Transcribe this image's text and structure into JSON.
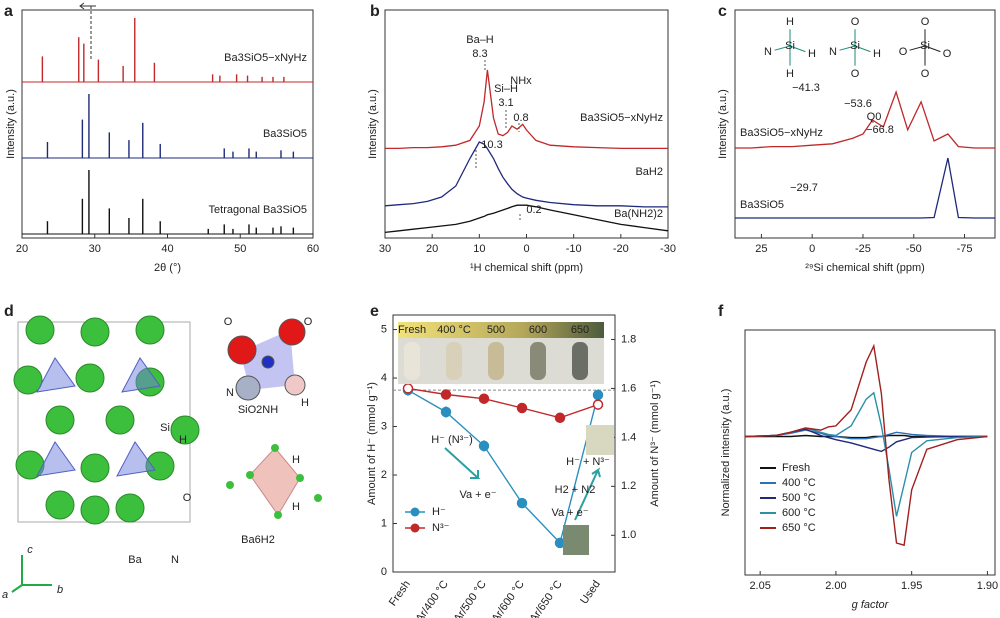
{
  "chart_data": [
    {
      "type": "xrd",
      "panel": "a",
      "xlim": [
        20,
        60
      ],
      "xticks": [
        20,
        30,
        40,
        50,
        60
      ],
      "xlabel": "2θ (°)",
      "ylabel": "Intensity (a.u.)",
      "series": [
        {
          "name": "Ba3SiO5−xNyHz",
          "color": "#c0282a",
          "x": [
            22.8,
            27.8,
            28.5,
            30.5,
            33.9,
            35.5,
            38.2,
            46.2,
            47.2,
            49.5,
            51,
            53,
            54.5,
            56
          ],
          "values": [
            40,
            70,
            60,
            35,
            25,
            100,
            30,
            12,
            10,
            12,
            10,
            8,
            8,
            8
          ]
        },
        {
          "name": "Ba3SiO5",
          "color": "#1f2a7a",
          "x": [
            23.5,
            28.3,
            29.2,
            32,
            34.7,
            36.6,
            39,
            47.8,
            49,
            51.2,
            52.2,
            55.6,
            57.3
          ],
          "values": [
            25,
            60,
            100,
            40,
            28,
            55,
            22,
            15,
            10,
            15,
            10,
            12,
            10
          ]
        },
        {
          "name": "Tetragonal Ba3SiO5",
          "color": "#111111",
          "x": [
            23.5,
            28.3,
            29.2,
            32,
            34.7,
            36.6,
            39,
            45.6,
            47.8,
            49,
            51.2,
            52.2,
            54.5,
            55.6,
            57.3
          ],
          "values": [
            20,
            55,
            100,
            40,
            25,
            55,
            20,
            8,
            15,
            8,
            15,
            10,
            10,
            12,
            10
          ]
        }
      ]
    },
    {
      "type": "stack",
      "panel": "b",
      "xlim": [
        30,
        -30
      ],
      "xticks": [
        30,
        20,
        10,
        0,
        -10,
        -20,
        -30
      ],
      "xlabel": "¹H chemical shift (ppm)",
      "ylabel": "Intensity (a.u.)",
      "x": [
        30,
        27,
        24,
        21,
        18,
        15,
        12,
        10,
        9,
        8.3,
        7,
        6,
        5,
        4,
        3.1,
        2,
        0.8,
        0,
        -2,
        -5,
        -10,
        -15,
        -20,
        -25,
        -30
      ],
      "series": [
        {
          "name": "Ba3SiO5−xNyHz",
          "color": "#c0282a",
          "values": [
            2,
            2,
            3,
            3,
            4,
            6,
            12,
            30,
            60,
            100,
            40,
            20,
            18,
            22,
            30,
            26,
            32,
            25,
            12,
            6,
            4,
            3,
            2,
            2,
            2
          ]
        },
        {
          "name": "BaH2",
          "color": "#1f2a7a",
          "values": [
            2,
            3,
            4,
            6,
            10,
            20,
            45,
            60,
            58,
            54,
            45,
            36,
            28,
            22,
            17,
            13,
            10,
            9,
            7,
            5,
            3,
            2,
            2,
            1,
            1
          ]
        },
        {
          "name": "Ba(NH2)2",
          "color": "#111111",
          "values": [
            1,
            2,
            3,
            4,
            5,
            6,
            8,
            10,
            11,
            12,
            13,
            14,
            15,
            16,
            17,
            18,
            18,
            18,
            17,
            15,
            12,
            9,
            6,
            4,
            2
          ]
        }
      ],
      "annotations": [
        "Ba–H",
        "8.3",
        "Si–H",
        "3.1",
        "NHx",
        "0.8",
        "10.3",
        "0.2"
      ]
    },
    {
      "type": "stack",
      "panel": "c",
      "xlim": [
        38,
        -90
      ],
      "xticks": [
        25,
        0,
        -25,
        -50,
        -75
      ],
      "xlabel": "²⁹Si chemical shift (ppm)",
      "ylabel": "Intensity (a.u.)",
      "x": [
        38,
        30,
        20,
        10,
        0,
        -10,
        -20,
        -25,
        -29.7,
        -35,
        -41.3,
        -47,
        -53.6,
        -60,
        -66.8,
        -72,
        -80,
        -90
      ],
      "series": [
        {
          "name": "Ba3SiO5−xNyHz",
          "color": "#c0282a",
          "values": [
            5,
            5,
            6,
            6,
            7,
            8,
            12,
            15,
            25,
            20,
            45,
            18,
            38,
            10,
            15,
            6,
            5,
            5
          ]
        },
        {
          "name": "Ba3SiO5",
          "color": "#1f2a7a",
          "values": [
            0,
            0,
            0,
            0,
            0,
            0,
            0,
            0,
            0,
            0,
            0,
            0,
            0,
            0.5,
            60,
            0.5,
            0,
            0
          ]
        }
      ],
      "annotations": [
        "−41.3",
        "−53.6",
        "Q0",
        "−66.8",
        "−29.7"
      ],
      "molecules": [
        {
          "center": "Si",
          "atoms": [
            "H",
            "N",
            "H",
            "H"
          ]
        },
        {
          "center": "Si",
          "atoms": [
            "O",
            "N",
            "H",
            "O"
          ]
        },
        {
          "center": "Si",
          "atoms": [
            "O",
            "O",
            "O",
            "O"
          ]
        }
      ]
    },
    {
      "type": "dual",
      "panel": "e",
      "categories": [
        "Fresh",
        "Ar/400 °C",
        "Ar/500 °C",
        "Ar/600 °C",
        "Ar/650 °C",
        "Used"
      ],
      "ylim": [
        0,
        5.3
      ],
      "yticks": [
        0,
        1,
        2,
        3,
        4,
        5
      ],
      "y2lim": [
        0.85,
        1.9
      ],
      "y2ticks": [
        {
          "value": 1,
          "label": "1.0"
        },
        1.2,
        1.4,
        1.6,
        1.8
      ],
      "ylabel": "Amount of H⁻ (mmol g⁻¹)",
      "y2label": "Amount of N³⁻ (mmol g⁻¹)",
      "series": [
        {
          "name": "H⁻",
          "color": "#2a8fbf",
          "values": [
            3.75,
            3.3,
            2.6,
            1.42,
            0.6,
            3.65
          ],
          "errors": [
            0.12,
            0.12,
            0.12,
            0.1,
            0.1,
            0.12
          ]
        },
        {
          "name": "N³⁻",
          "color": "#c0282a",
          "axis": "y2",
          "values": [
            1.6,
            1.575,
            1.558,
            1.52,
            1.48,
            1.534
          ],
          "errors": [
            0.02,
            0.02,
            0.02,
            0.02,
            0.02,
            0.02
          ]
        }
      ],
      "annotations": [
        "H⁻ (N³⁻)",
        "Va + e⁻",
        "Va + e⁻",
        "H2 + N2",
        "H⁻ + N³⁻"
      ],
      "inset_labels": [
        "Fresh",
        "400 °C",
        "500",
        "600",
        "650"
      ]
    },
    {
      "type": "line",
      "panel": "f",
      "xlim": [
        2.06,
        1.895
      ],
      "xticks": [
        2.05,
        {
          "value": 2,
          "label": "2.00"
        },
        1.95,
        {
          "value": 1.9,
          "label": "1.90"
        }
      ],
      "ylim": [
        -130,
        100
      ],
      "xlabel": "g factor",
      "ylabel": "Normalized intensity (a.u.)",
      "x": [
        2.06,
        2.04,
        2.03,
        2.02,
        2.01,
        2.005,
        2.0,
        1.99,
        1.98,
        1.975,
        1.97,
        1.965,
        1.96,
        1.955,
        1.95,
        1.94,
        1.92,
        1.9
      ],
      "series": [
        {
          "name": "Fresh",
          "color": "#111111",
          "values": [
            0,
            0,
            0,
            1,
            0,
            0,
            0,
            -1,
            -1,
            0,
            0,
            1,
            1,
            1,
            0,
            0,
            0,
            0
          ]
        },
        {
          "name": "400 °C",
          "color": "#2f6fb3",
          "values": [
            0,
            1,
            3,
            6,
            3,
            1,
            0,
            -2,
            -2,
            -1,
            0,
            2,
            4,
            3,
            2,
            1,
            0,
            0
          ]
        },
        {
          "name": "500 °C",
          "color": "#1f2a7a",
          "values": [
            0,
            1,
            4,
            7,
            1,
            -1,
            -3,
            -6,
            -10,
            -12,
            -14,
            -10,
            -5,
            -3,
            -1,
            -0.5,
            0,
            0
          ]
        },
        {
          "name": "600 °C",
          "color": "#2a8fa8",
          "values": [
            0,
            1,
            4,
            8,
            4,
            2,
            1,
            10,
            35,
            41,
            10,
            -30,
            -75,
            -45,
            -15,
            -4,
            -1,
            0
          ]
        },
        {
          "name": "650 °C",
          "color": "#a0201f",
          "values": [
            0,
            1,
            4,
            8,
            6,
            9,
            10,
            25,
            70,
            85,
            40,
            -40,
            -100,
            -102,
            -50,
            -12,
            -3,
            0
          ]
        }
      ]
    }
  ],
  "panel_d": {
    "panel": "d",
    "labels": [
      "Si",
      "H",
      "O",
      "Ba",
      "N",
      "SiO2NH",
      "Ba6H2",
      "c",
      "a",
      "b",
      "O",
      "O",
      "N",
      "H",
      "H",
      "H"
    ]
  }
}
